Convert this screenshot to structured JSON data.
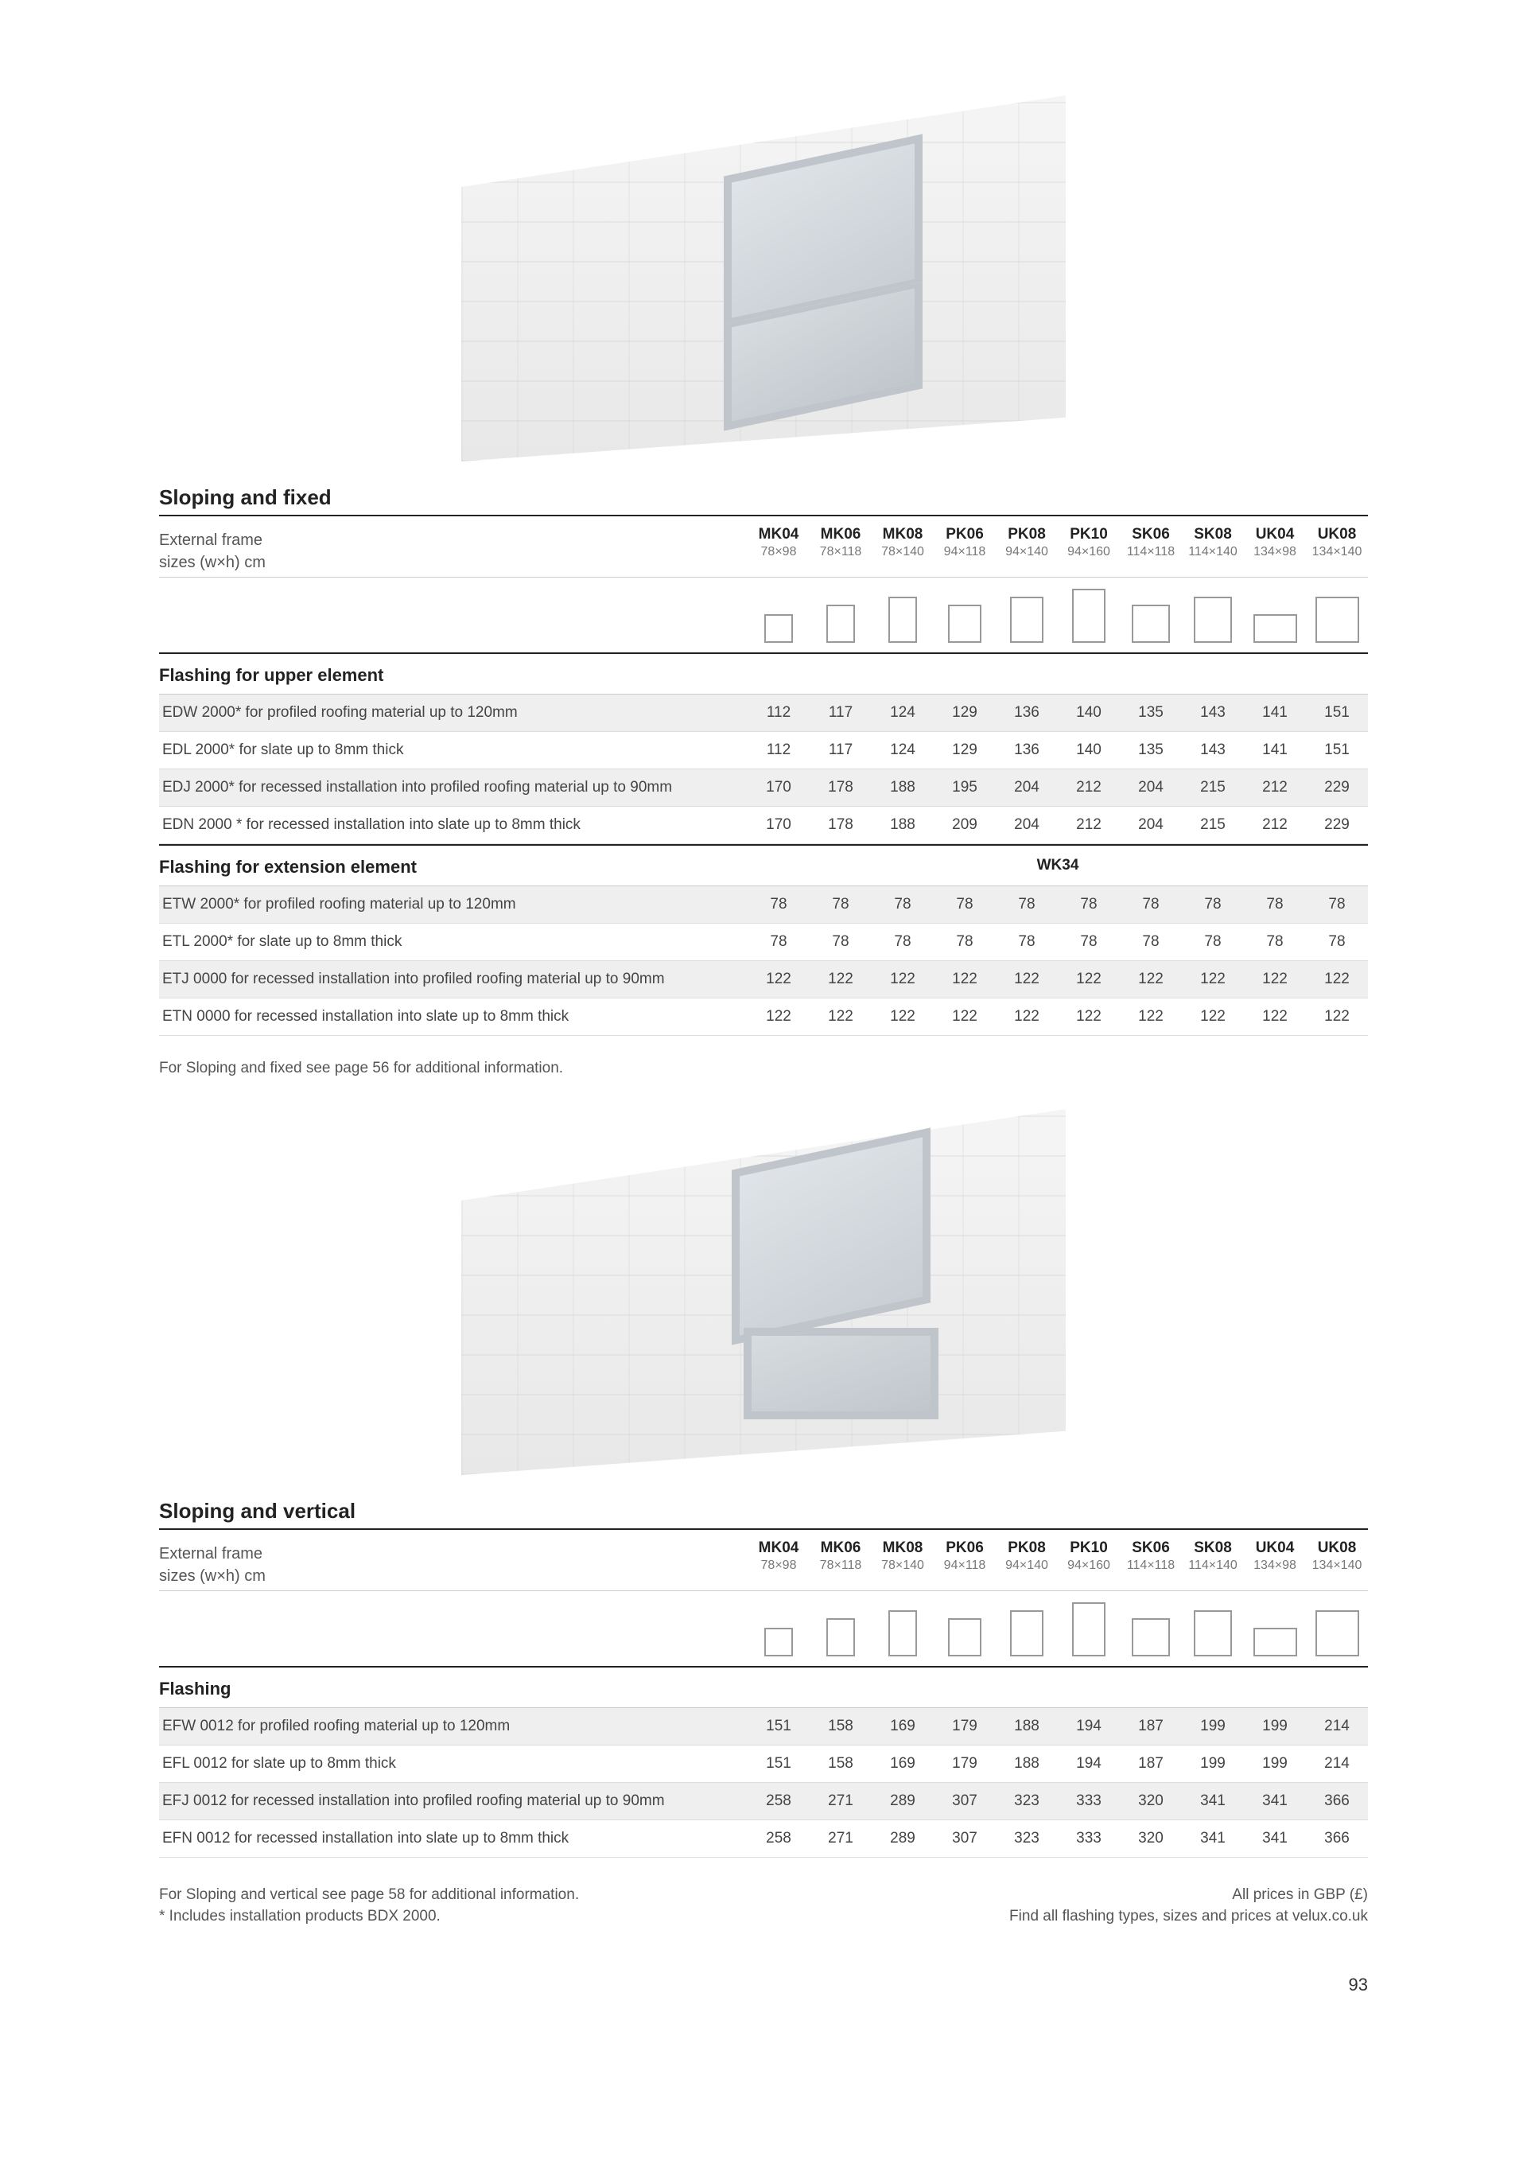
{
  "sizeColumns": [
    {
      "code": "MK04",
      "size": "78×98",
      "w": 36,
      "h": 36
    },
    {
      "code": "MK06",
      "size": "78×118",
      "w": 36,
      "h": 48
    },
    {
      "code": "MK08",
      "size": "78×140",
      "w": 36,
      "h": 58
    },
    {
      "code": "PK06",
      "size": "94×118",
      "w": 42,
      "h": 48
    },
    {
      "code": "PK08",
      "size": "94×140",
      "w": 42,
      "h": 58
    },
    {
      "code": "PK10",
      "size": "94×160",
      "w": 42,
      "h": 68
    },
    {
      "code": "SK06",
      "size": "114×118",
      "w": 48,
      "h": 48
    },
    {
      "code": "SK08",
      "size": "114×140",
      "w": 48,
      "h": 58
    },
    {
      "code": "UK04",
      "size": "134×98",
      "w": 55,
      "h": 36
    },
    {
      "code": "UK08",
      "size": "134×140",
      "w": 55,
      "h": 58
    }
  ],
  "section1": {
    "title": "Sloping and fixed",
    "frameLabel1": "External frame",
    "frameLabel2": "sizes (w×h) cm",
    "sub1": "Flashing for upper element",
    "sub2": {
      "label": "Flashing for extension element",
      "center": "WK34"
    },
    "rows1": [
      {
        "shaded": true,
        "label": "EDW 2000* for profiled roofing material up to 120mm",
        "v": [
          112,
          117,
          124,
          129,
          136,
          140,
          135,
          143,
          141,
          151
        ]
      },
      {
        "shaded": false,
        "label": "EDL 2000* for slate up to 8mm thick",
        "v": [
          112,
          117,
          124,
          129,
          136,
          140,
          135,
          143,
          141,
          151
        ]
      },
      {
        "shaded": true,
        "label": "EDJ 2000* for recessed installation into profiled roofing material up to 90mm",
        "v": [
          170,
          178,
          188,
          195,
          204,
          212,
          204,
          215,
          212,
          229
        ]
      },
      {
        "shaded": false,
        "label": "EDN 2000 * for recessed installation into slate up to 8mm thick",
        "v": [
          170,
          178,
          188,
          209,
          204,
          212,
          204,
          215,
          212,
          229
        ]
      }
    ],
    "rows2": [
      {
        "shaded": true,
        "label": "ETW 2000* for profiled roofing material up to 120mm",
        "v": [
          78,
          78,
          78,
          78,
          78,
          78,
          78,
          78,
          78,
          78
        ]
      },
      {
        "shaded": false,
        "label": "ETL 2000* for slate up to 8mm thick",
        "v": [
          78,
          78,
          78,
          78,
          78,
          78,
          78,
          78,
          78,
          78
        ]
      },
      {
        "shaded": true,
        "label": "ETJ 0000 for recessed installation into profiled roofing material up to 90mm",
        "v": [
          122,
          122,
          122,
          122,
          122,
          122,
          122,
          122,
          122,
          122
        ]
      },
      {
        "shaded": false,
        "label": "ETN 0000 for recessed installation into slate up to 8mm thick",
        "v": [
          122,
          122,
          122,
          122,
          122,
          122,
          122,
          122,
          122,
          122
        ]
      }
    ],
    "note": "For Sloping and fixed see page 56 for additional information."
  },
  "section2": {
    "title": "Sloping and vertical",
    "frameLabel1": "External frame",
    "frameLabel2": "sizes (w×h) cm",
    "sub1": "Flashing",
    "rows1": [
      {
        "shaded": true,
        "label": "EFW 0012 for profiled roofing material up to 120mm",
        "v": [
          151,
          158,
          169,
          179,
          188,
          194,
          187,
          199,
          199,
          214
        ]
      },
      {
        "shaded": false,
        "label": "EFL 0012 for slate up to 8mm thick",
        "v": [
          151,
          158,
          169,
          179,
          188,
          194,
          187,
          199,
          199,
          214
        ]
      },
      {
        "shaded": true,
        "label": "EFJ 0012 for recessed installation into profiled roofing material up to 90mm",
        "v": [
          258,
          271,
          289,
          307,
          323,
          333,
          320,
          341,
          341,
          366
        ]
      },
      {
        "shaded": false,
        "label": "EFN 0012 for recessed installation into slate up to 8mm thick",
        "v": [
          258,
          271,
          289,
          307,
          323,
          333,
          320,
          341,
          341,
          366
        ]
      }
    ]
  },
  "footer": {
    "left1": "For Sloping and vertical see page 58 for additional information.",
    "left2": "* Includes installation products BDX 2000.",
    "right1": "All prices in GBP (£)",
    "right2": "Find all flashing types, sizes and prices at velux.co.uk"
  },
  "pageNumber": "93",
  "colors": {
    "rowShade": "#efefef",
    "borderDark": "#222222",
    "borderLight": "#cccccc",
    "textMuted": "#555555"
  }
}
